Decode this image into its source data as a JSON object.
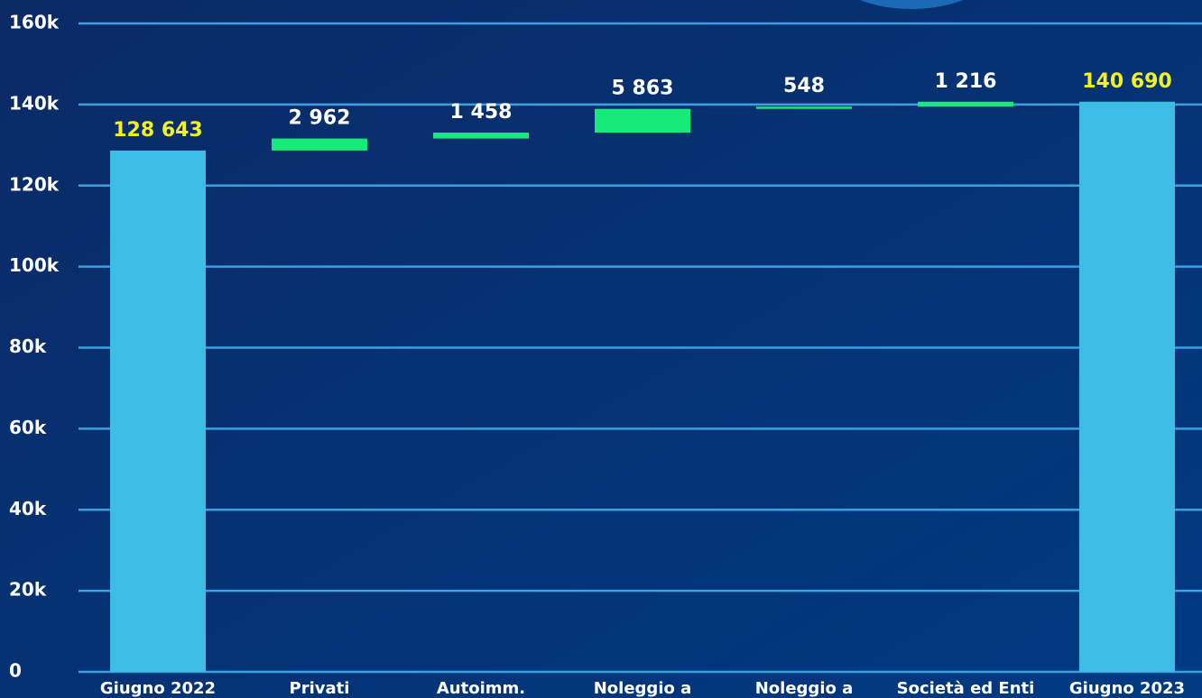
{
  "chart_data": {
    "type": "waterfall",
    "categories": [
      "Giugno 2022",
      "Privati",
      "Autoimm.",
      "Noleggio a",
      "Noleggio a",
      "Società ed Enti",
      "Giugno 2023"
    ],
    "values": [
      128643,
      2962,
      1458,
      5863,
      548,
      1216,
      140690
    ],
    "value_labels": [
      "128 643",
      "2 962",
      "1 458",
      "5 863",
      "548",
      "1 216",
      "140 690"
    ],
    "colors": [
      "#3dbde6",
      "#16ea78",
      "#16ea78",
      "#16ea78",
      "#16ea78",
      "#16ea78",
      "#3dbde6"
    ],
    "value_label_colors": [
      "#f2f21c",
      "#ffffff",
      "#ffffff",
      "#ffffff",
      "#ffffff",
      "#ffffff",
      "#f2f21c"
    ],
    "ylim": [
      0,
      160000
    ],
    "yticks": [
      0,
      {
        "value": 20000,
        "label": "20k"
      },
      {
        "value": 40000,
        "label": "40k"
      },
      {
        "value": 60000,
        "label": "60k"
      },
      {
        "value": 80000,
        "label": "80k"
      },
      {
        "value": 100000,
        "label": "100k"
      },
      {
        "value": 120000,
        "label": "120k"
      },
      {
        "value": 140000,
        "label": "140k"
      },
      {
        "value": 160000,
        "label": "160k"
      }
    ],
    "grid": true
  }
}
